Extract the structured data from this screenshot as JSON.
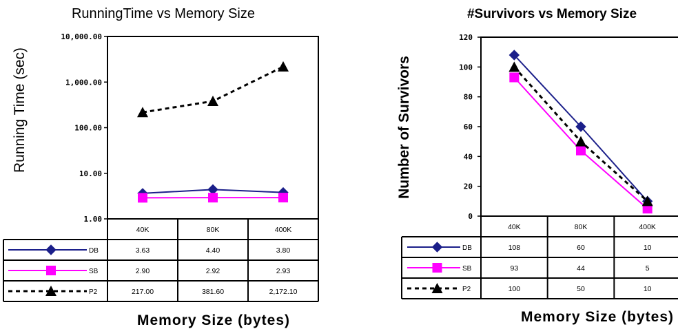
{
  "colors": {
    "db": "#1b1f8a",
    "sb": "#ff00ff",
    "p2": "#000000"
  },
  "chart_data": [
    {
      "type": "line",
      "title": "RunningTime vs Memory Size",
      "xlabel": "Memory Size (bytes)",
      "ylabel": "Running Time (sec)",
      "yscale": "log",
      "ylim": [
        1,
        10000
      ],
      "yticks": [
        "10,000.00",
        "1,000.00",
        "100.00",
        "10.00",
        "1.00"
      ],
      "categories": [
        "40K",
        "80K",
        "400K"
      ],
      "series": [
        {
          "name": "DB",
          "values": [
            3.63,
            4.4,
            3.8
          ],
          "labels": [
            "3.63",
            "4.40",
            "3.80"
          ]
        },
        {
          "name": "SB",
          "values": [
            2.9,
            2.92,
            2.93
          ],
          "labels": [
            "2.90",
            "2.92",
            "2.93"
          ]
        },
        {
          "name": "P2",
          "values": [
            217.0,
            381.6,
            2172.1
          ],
          "labels": [
            "217.00",
            "381.60",
            "2,172.10"
          ]
        }
      ],
      "grid": false,
      "data_table": true
    },
    {
      "type": "line",
      "title": "#Survivors vs Memory Size",
      "xlabel": "Memory Size (bytes)",
      "ylabel": "Number of Survivors",
      "yscale": "linear",
      "ylim": [
        0,
        120
      ],
      "yticks": [
        "120",
        "100",
        "80",
        "60",
        "40",
        "20",
        "0"
      ],
      "categories": [
        "40K",
        "80K",
        "400K"
      ],
      "series": [
        {
          "name": "DB",
          "values": [
            108,
            60,
            10
          ],
          "labels": [
            "108",
            "60",
            "10"
          ]
        },
        {
          "name": "SB",
          "values": [
            93,
            44,
            5
          ],
          "labels": [
            "93",
            "44",
            "5"
          ]
        },
        {
          "name": "P2",
          "values": [
            100,
            50,
            10
          ],
          "labels": [
            "100",
            "50",
            "10"
          ]
        }
      ],
      "grid": false,
      "data_table": true
    }
  ]
}
